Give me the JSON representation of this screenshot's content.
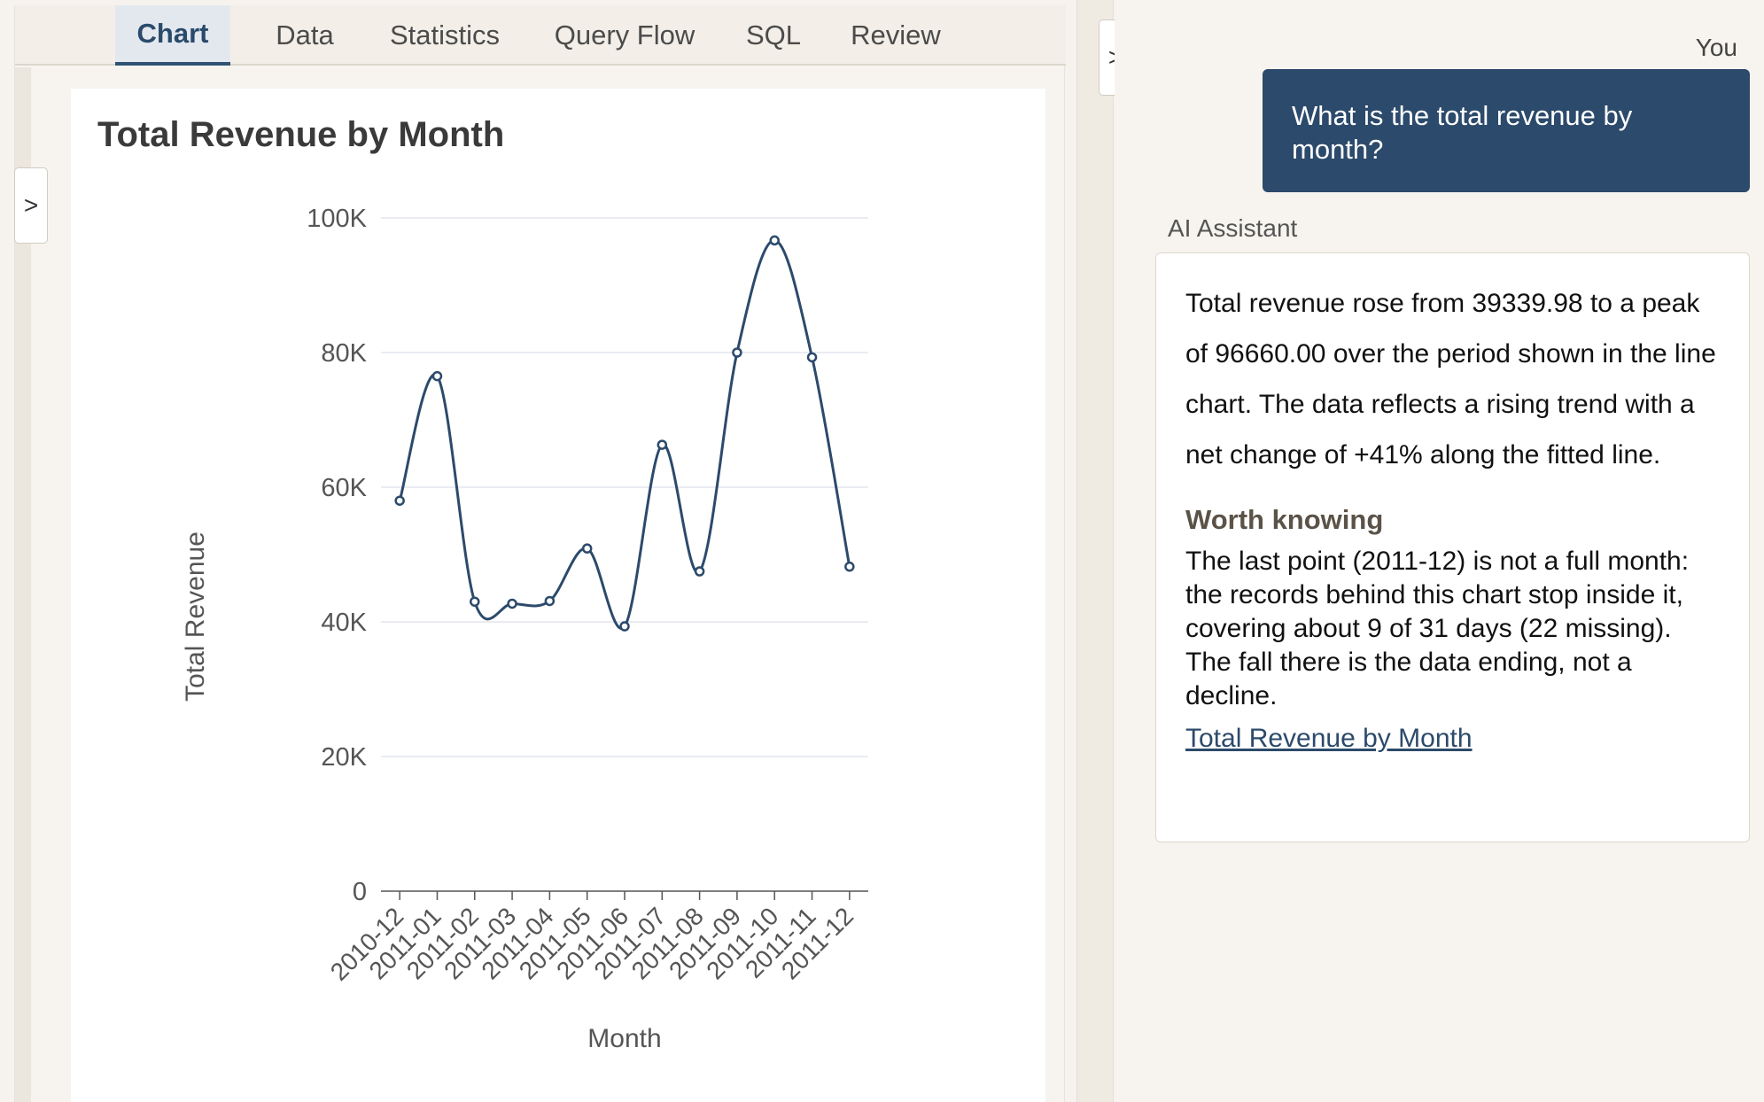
{
  "tabs": [
    {
      "label": "Chart",
      "active": true
    },
    {
      "label": "Data",
      "active": false
    },
    {
      "label": "Statistics",
      "active": false
    },
    {
      "label": "Query Flow",
      "active": false
    },
    {
      "label": "SQL",
      "active": false
    },
    {
      "label": "Review",
      "active": false
    }
  ],
  "collapse_glyph": ">",
  "chart_data": {
    "type": "line",
    "title": "Total Revenue by Month",
    "xlabel": "Month",
    "ylabel": "Total Revenue",
    "categories": [
      "2010-12",
      "2011-01",
      "2011-02",
      "2011-03",
      "2011-04",
      "2011-05",
      "2011-06",
      "2011-07",
      "2011-08",
      "2011-09",
      "2011-10",
      "2011-11",
      "2011-12"
    ],
    "series": [
      {
        "values": [
          58000,
          76500,
          43000,
          42700,
          43100,
          50900,
          39340,
          66300,
          47500,
          80000,
          96660,
          79300,
          48200
        ]
      }
    ],
    "ylim": [
      0,
      100000
    ],
    "yticks": [
      0,
      20000,
      40000,
      60000,
      80000,
      100000
    ],
    "ytick_labels": [
      "0",
      "20K",
      "40K",
      "60K",
      "80K",
      "100K"
    ],
    "grid": "horizontal",
    "line_color": "#2c4a6b",
    "smooth": true
  },
  "chat": {
    "user_label": "You",
    "user_message": "What is the total revenue by month?",
    "ai_label": "AI Assistant",
    "ai_summary": "Total revenue rose from 39339.98 to a peak of 96660.00 over the period shown in the line chart. The data reflects a rising trend with a net change of +41% along the fitted line.",
    "worth_title": "Worth knowing",
    "worth_body": "The last point (2011-12) is not a full month: the records behind this chart stop inside it, covering about 9 of 31 days (22 missing). The fall there is the data ending, not a decline.",
    "link_label": "Total Revenue by Month"
  },
  "colors": {
    "accent": "#2c4a6b",
    "background": "#f6f3ee",
    "active_tab_bg": "#e3e8ef"
  }
}
